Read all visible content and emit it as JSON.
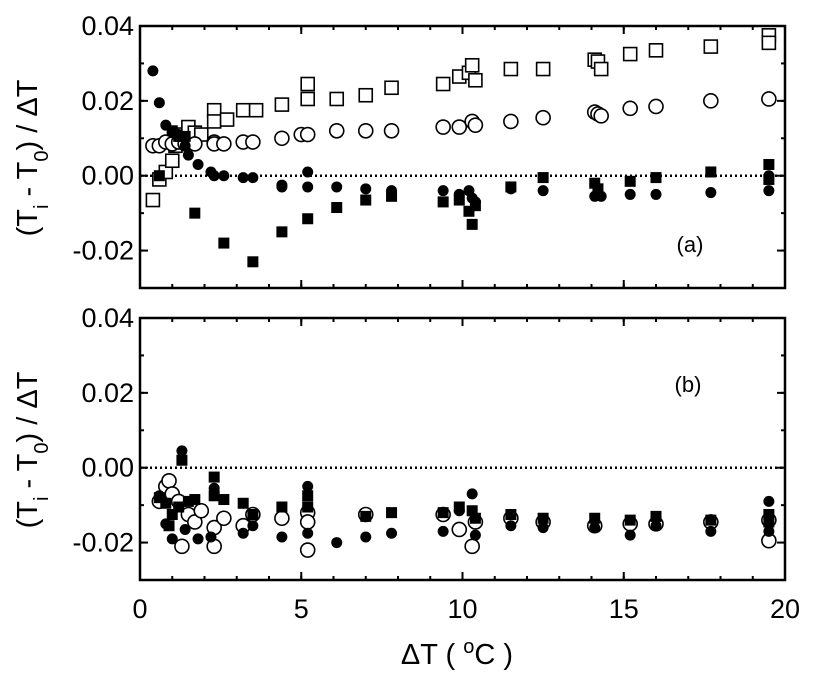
{
  "chart_data": {
    "type": "scatter",
    "x_axis": {
      "label_prefix": "ΔT ( ",
      "label_sup": "o",
      "label_suffix": "C )",
      "range": [
        0,
        20
      ],
      "ticks": [
        0,
        5,
        10,
        15,
        20
      ],
      "tick_labels": [
        "0",
        "5",
        "10",
        "15",
        "20"
      ]
    },
    "y_axis": {
      "label_prefix": "(T",
      "label_sub1": "i",
      "label_mid": " - T",
      "label_sub2": "0",
      "label_suffix": ") / ΔT",
      "range": [
        -0.03,
        0.04
      ],
      "ticks": [
        -0.02,
        0.0,
        0.02,
        0.04
      ],
      "tick_labels": [
        "-0.02",
        "0.00",
        "0.02",
        "0.04"
      ]
    },
    "panels": [
      {
        "tag": "(a)",
        "series": [
          {
            "name": "open-square",
            "marker": "square-open",
            "points": [
              [
                0.4,
                -0.0065
              ],
              [
                0.6,
                -0.001
              ],
              [
                0.8,
                0.001
              ],
              [
                1.0,
                0.004
              ],
              [
                1.1,
                0.008
              ],
              [
                1.3,
                0.011
              ],
              [
                1.5,
                0.013
              ],
              [
                1.7,
                0.0115
              ],
              [
                1.9,
                0.011
              ],
              [
                2.3,
                0.0175
              ],
              [
                2.3,
                0.0145
              ],
              [
                2.7,
                0.015
              ],
              [
                3.2,
                0.0175
              ],
              [
                3.6,
                0.0175
              ],
              [
                4.4,
                0.019
              ],
              [
                5.2,
                0.0245
              ],
              [
                5.2,
                0.0205
              ],
              [
                6.1,
                0.0205
              ],
              [
                7.0,
                0.0215
              ],
              [
                7.8,
                0.0235
              ],
              [
                9.4,
                0.0245
              ],
              [
                9.9,
                0.0265
              ],
              [
                10.2,
                0.0275
              ],
              [
                10.3,
                0.0295
              ],
              [
                10.4,
                0.0255
              ],
              [
                11.5,
                0.0285
              ],
              [
                12.5,
                0.0285
              ],
              [
                14.1,
                0.031
              ],
              [
                14.2,
                0.0305
              ],
              [
                14.3,
                0.0285
              ],
              [
                15.2,
                0.0325
              ],
              [
                16.0,
                0.0335
              ],
              [
                17.7,
                0.0345
              ],
              [
                19.5,
                0.0375
              ],
              [
                19.5,
                0.0355
              ]
            ]
          },
          {
            "name": "open-circle",
            "marker": "circle-open",
            "points": [
              [
                0.4,
                0.008
              ],
              [
                0.6,
                0.008
              ],
              [
                0.8,
                0.009
              ],
              [
                1.0,
                0.0085
              ],
              [
                1.2,
                0.009
              ],
              [
                1.4,
                0.0085
              ],
              [
                1.7,
                0.0085
              ],
              [
                2.3,
                0.009
              ],
              [
                2.3,
                0.0085
              ],
              [
                2.6,
                0.0085
              ],
              [
                3.2,
                0.009
              ],
              [
                3.5,
                0.009
              ],
              [
                4.4,
                0.01
              ],
              [
                5.0,
                0.011
              ],
              [
                5.2,
                0.011
              ],
              [
                6.1,
                0.012
              ],
              [
                7.0,
                0.012
              ],
              [
                7.8,
                0.012
              ],
              [
                9.4,
                0.013
              ],
              [
                9.9,
                0.013
              ],
              [
                10.3,
                0.0145
              ],
              [
                10.4,
                0.0135
              ],
              [
                11.5,
                0.0145
              ],
              [
                12.5,
                0.0155
              ],
              [
                14.1,
                0.017
              ],
              [
                14.2,
                0.0165
              ],
              [
                14.3,
                0.016
              ],
              [
                15.2,
                0.018
              ],
              [
                16.0,
                0.0185
              ],
              [
                17.7,
                0.02
              ],
              [
                19.5,
                0.0205
              ]
            ]
          },
          {
            "name": "filled-circle",
            "marker": "circle-filled",
            "points": [
              [
                0.4,
                0.028
              ],
              [
                0.6,
                0.0195
              ],
              [
                0.8,
                0.0135
              ],
              [
                1.0,
                0.0115
              ],
              [
                1.2,
                0.011
              ],
              [
                1.4,
                0.008
              ],
              [
                1.5,
                0.0055
              ],
              [
                1.8,
                0.003
              ],
              [
                2.2,
                0.001
              ],
              [
                2.3,
                0.0
              ],
              [
                2.6,
                0.0
              ],
              [
                3.2,
                -0.0005
              ],
              [
                3.5,
                -0.0005
              ],
              [
                4.4,
                -0.0025
              ],
              [
                4.4,
                -0.003
              ],
              [
                5.2,
                0.001
              ],
              [
                5.2,
                -0.003
              ],
              [
                6.1,
                -0.003
              ],
              [
                7.0,
                -0.0035
              ],
              [
                7.8,
                -0.004
              ],
              [
                9.4,
                -0.004
              ],
              [
                9.9,
                -0.005
              ],
              [
                10.2,
                -0.004
              ],
              [
                10.3,
                -0.006
              ],
              [
                10.4,
                -0.007
              ],
              [
                11.5,
                -0.0035
              ],
              [
                12.5,
                -0.004
              ],
              [
                14.1,
                -0.0055
              ],
              [
                14.2,
                -0.0045
              ],
              [
                14.3,
                -0.0055
              ],
              [
                15.2,
                -0.005
              ],
              [
                16.0,
                -0.005
              ],
              [
                17.7,
                -0.0045
              ],
              [
                19.5,
                -0.004
              ],
              [
                19.5,
                0.0
              ]
            ]
          },
          {
            "name": "filled-square",
            "marker": "square-filled",
            "points": [
              [
                0.6,
                0.0
              ],
              [
                1.0,
                0.012
              ],
              [
                1.2,
                0.0105
              ],
              [
                1.4,
                0.0105
              ],
              [
                1.7,
                -0.01
              ],
              [
                2.6,
                -0.018
              ],
              [
                3.5,
                -0.023
              ],
              [
                4.4,
                -0.015
              ],
              [
                5.2,
                -0.0115
              ],
              [
                6.1,
                -0.0085
              ],
              [
                7.0,
                -0.0065
              ],
              [
                7.8,
                -0.0055
              ],
              [
                9.4,
                -0.007
              ],
              [
                9.9,
                -0.0065
              ],
              [
                10.2,
                -0.0095
              ],
              [
                10.3,
                -0.013
              ],
              [
                10.4,
                -0.008
              ],
              [
                11.5,
                -0.003
              ],
              [
                12.5,
                -0.0005
              ],
              [
                14.1,
                -0.002
              ],
              [
                14.2,
                -0.0035
              ],
              [
                15.2,
                -0.0015
              ],
              [
                16.0,
                -0.0005
              ],
              [
                17.7,
                0.001
              ],
              [
                19.5,
                0.003
              ],
              [
                19.5,
                -0.001
              ]
            ]
          }
        ]
      },
      {
        "tag": "(b)",
        "series": [
          {
            "name": "open-circle",
            "marker": "circle-open",
            "points": [
              [
                0.6,
                -0.009
              ],
              [
                0.8,
                -0.005
              ],
              [
                0.9,
                -0.0035
              ],
              [
                1.0,
                -0.007
              ],
              [
                1.2,
                -0.009
              ],
              [
                1.3,
                -0.021
              ],
              [
                1.5,
                -0.0125
              ],
              [
                1.7,
                -0.0145
              ],
              [
                1.9,
                -0.0115
              ],
              [
                2.3,
                -0.016
              ],
              [
                2.3,
                -0.021
              ],
              [
                2.6,
                -0.0135
              ],
              [
                3.2,
                -0.0155
              ],
              [
                3.5,
                -0.0125
              ],
              [
                4.4,
                -0.0135
              ],
              [
                5.2,
                -0.012
              ],
              [
                5.2,
                -0.0145
              ],
              [
                5.2,
                -0.022
              ],
              [
                7.0,
                -0.0125
              ],
              [
                9.4,
                -0.0125
              ],
              [
                9.9,
                -0.0165
              ],
              [
                10.3,
                -0.021
              ],
              [
                10.4,
                -0.0145
              ],
              [
                11.5,
                -0.0135
              ],
              [
                12.5,
                -0.0145
              ],
              [
                14.1,
                -0.0155
              ],
              [
                15.2,
                -0.015
              ],
              [
                16.0,
                -0.015
              ],
              [
                17.7,
                -0.0145
              ],
              [
                19.5,
                -0.014
              ],
              [
                19.5,
                -0.0195
              ]
            ]
          },
          {
            "name": "filled-circle",
            "marker": "circle-filled",
            "points": [
              [
                0.6,
                -0.0075
              ],
              [
                0.8,
                -0.015
              ],
              [
                1.0,
                -0.019
              ],
              [
                1.2,
                -0.0105
              ],
              [
                1.3,
                0.0045
              ],
              [
                1.4,
                -0.0165
              ],
              [
                1.8,
                -0.019
              ],
              [
                2.2,
                -0.0185
              ],
              [
                2.3,
                -0.0055
              ],
              [
                3.2,
                -0.0175
              ],
              [
                3.5,
                -0.0155
              ],
              [
                4.4,
                -0.0185
              ],
              [
                5.2,
                -0.005
              ],
              [
                5.2,
                -0.0175
              ],
              [
                6.1,
                -0.02
              ],
              [
                7.0,
                -0.0185
              ],
              [
                7.8,
                -0.0175
              ],
              [
                9.4,
                -0.017
              ],
              [
                9.9,
                -0.0115
              ],
              [
                10.3,
                -0.007
              ],
              [
                10.4,
                -0.018
              ],
              [
                11.5,
                -0.0155
              ],
              [
                12.5,
                -0.016
              ],
              [
                14.1,
                -0.016
              ],
              [
                15.2,
                -0.018
              ],
              [
                16.0,
                -0.0155
              ],
              [
                17.7,
                -0.017
              ],
              [
                19.5,
                -0.009
              ],
              [
                19.5,
                -0.017
              ]
            ]
          },
          {
            "name": "filled-square",
            "marker": "square-filled",
            "points": [
              [
                0.6,
                -0.008
              ],
              [
                0.8,
                -0.0095
              ],
              [
                0.9,
                -0.0155
              ],
              [
                1.0,
                -0.0125
              ],
              [
                1.2,
                -0.0105
              ],
              [
                1.3,
                0.002
              ],
              [
                1.5,
                -0.009
              ],
              [
                1.7,
                -0.0085
              ],
              [
                2.3,
                -0.0025
              ],
              [
                2.3,
                -0.0075
              ],
              [
                2.6,
                -0.0085
              ],
              [
                3.2,
                -0.0095
              ],
              [
                3.5,
                -0.0125
              ],
              [
                4.4,
                -0.0105
              ],
              [
                5.2,
                -0.0075
              ],
              [
                5.2,
                -0.0105
              ],
              [
                7.0,
                -0.013
              ],
              [
                7.8,
                -0.012
              ],
              [
                9.4,
                -0.012
              ],
              [
                9.9,
                -0.0105
              ],
              [
                10.3,
                -0.0115
              ],
              [
                10.4,
                -0.0135
              ],
              [
                11.5,
                -0.0125
              ],
              [
                12.5,
                -0.0135
              ],
              [
                14.1,
                -0.0135
              ],
              [
                15.2,
                -0.014
              ],
              [
                16.0,
                -0.013
              ],
              [
                17.7,
                -0.014
              ],
              [
                19.5,
                -0.0125
              ],
              [
                19.5,
                -0.0145
              ]
            ]
          }
        ]
      }
    ]
  }
}
